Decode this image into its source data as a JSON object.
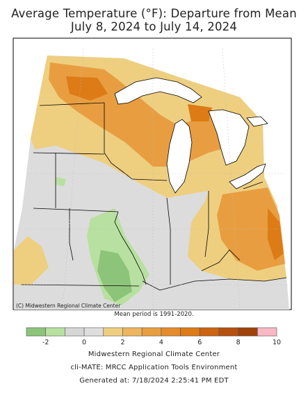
{
  "title_line1": "Average Temperature (°F): Departure from Mean",
  "title_line2": "July 8, 2024 to July 14, 2024",
  "credit": "(C) Midwestern Regional Climate Center",
  "mean_note": "Mean period is 1991-2020.",
  "legend": {
    "bins": [
      {
        "from": -3,
        "to": -2,
        "color": "#8cc47a"
      },
      {
        "from": -2,
        "to": -1,
        "color": "#b8e0a0"
      },
      {
        "from": -1,
        "to": 0,
        "color": "#d6d6d6"
      },
      {
        "from": 0,
        "to": 1,
        "color": "#dedede"
      },
      {
        "from": 1,
        "to": 2,
        "color": "#eecf80"
      },
      {
        "from": 2,
        "to": 3,
        "color": "#ecb660"
      },
      {
        "from": 3,
        "to": 4,
        "color": "#e89e40"
      },
      {
        "from": 4,
        "to": 5,
        "color": "#e48c2c"
      },
      {
        "from": 5,
        "to": 6,
        "color": "#dd7b16"
      },
      {
        "from": 6,
        "to": 7,
        "color": "#cc6412"
      },
      {
        "from": 7,
        "to": 8,
        "color": "#b5510e"
      },
      {
        "from": 8,
        "to": 9,
        "color": "#a0410b"
      },
      {
        "from": 9,
        "to": 10,
        "color": "#f8b8c4"
      }
    ],
    "tick_labels": [
      "-2",
      "0",
      "2",
      "4",
      "6",
      "8",
      "10"
    ]
  },
  "footer": {
    "line1": "Midwestern Regional Climate Center",
    "line2": "cli-MATE: MRCC Application Tools Environment",
    "line3": "Generated at: 7/18/2024 2:25:41 PM EDT"
  },
  "colors": {
    "land": "#dcdcdc",
    "lake": "#ffffff",
    "border": "#000000",
    "warm_light": "#eecf80",
    "warm_mid": "#e89e40",
    "warm_strong": "#dd7b16",
    "cool_light": "#b8e0a0",
    "cool_mid": "#8cc47a"
  }
}
